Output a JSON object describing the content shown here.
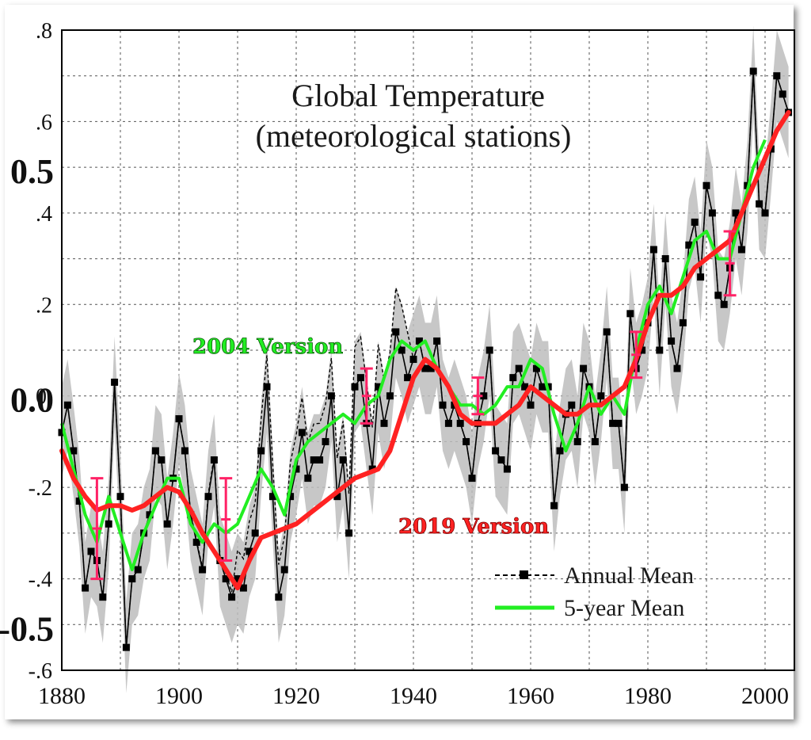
{
  "chart_data": {
    "type": "line",
    "title": "Global Temperature",
    "subtitle": "(meteorological stations)",
    "xlabel": "",
    "ylabel": "",
    "xlim": [
      1880,
      2005
    ],
    "ylim": [
      -0.6,
      0.8
    ],
    "grid": true,
    "legend_position": "bottom-right",
    "x_ticks": [
      {
        "value": 1880,
        "label": "1880"
      },
      {
        "value": 1900,
        "label": "1900"
      },
      {
        "value": 1920,
        "label": "1920"
      },
      {
        "value": 1940,
        "label": "1940"
      },
      {
        "value": 1960,
        "label": "1960"
      },
      {
        "value": 1980,
        "label": "1980"
      },
      {
        "value": 2000,
        "label": "2000"
      }
    ],
    "y_ticks_small": [
      {
        "value": 0.8,
        "label": ".8"
      },
      {
        "value": 0.6,
        "label": ".6"
      },
      {
        "value": 0.4,
        "label": ".4"
      },
      {
        "value": 0.2,
        "label": ".2"
      },
      {
        "value": 0.0,
        "label": "0."
      },
      {
        "value": -0.2,
        "label": "-.2"
      },
      {
        "value": -0.4,
        "label": "-.4"
      },
      {
        "value": -0.6,
        "label": "-.6"
      }
    ],
    "y_ticks_large": [
      {
        "value": 0.5,
        "label": "0.5"
      },
      {
        "value": 0.0,
        "label": "0.0"
      },
      {
        "value": -0.5,
        "label": "-0.5"
      }
    ],
    "annotations": [
      {
        "text": "2004 Version",
        "color": "#22ee22"
      },
      {
        "text": "2019 Version",
        "color": "#ff2222"
      }
    ],
    "legend": [
      {
        "label": "Annual Mean",
        "style": "dashed-square-marker",
        "color": "#000000"
      },
      {
        "label": "5-year Mean",
        "style": "solid",
        "color": "#22ee22"
      }
    ],
    "colors": {
      "uncertainty_band": "#bdbdbd",
      "annual_2019": "#000000",
      "annual_2004": "#000000",
      "mean_2004": "#22ee22",
      "smooth_2019": "#ff2222",
      "error_bars": "#ff2266"
    },
    "series": [
      {
        "name": "Annual Mean",
        "x": [
          1880,
          1881,
          1882,
          1883,
          1884,
          1885,
          1886,
          1887,
          1888,
          1889,
          1890,
          1891,
          1892,
          1893,
          1894,
          1895,
          1896,
          1897,
          1898,
          1899,
          1900,
          1901,
          1902,
          1903,
          1904,
          1905,
          1906,
          1907,
          1908,
          1909,
          1910,
          1911,
          1912,
          1913,
          1914,
          1915,
          1916,
          1917,
          1918,
          1919,
          1920,
          1921,
          1922,
          1923,
          1924,
          1925,
          1926,
          1927,
          1928,
          1929,
          1930,
          1931,
          1932,
          1933,
          1934,
          1935,
          1936,
          1937,
          1938,
          1939,
          1940,
          1941,
          1942,
          1943,
          1944,
          1945,
          1946,
          1947,
          1948,
          1949,
          1950,
          1951,
          1952,
          1953,
          1954,
          1955,
          1956,
          1957,
          1958,
          1959,
          1960,
          1961,
          1962,
          1963,
          1964,
          1965,
          1966,
          1967,
          1968,
          1969,
          1970,
          1971,
          1972,
          1973,
          1974,
          1975,
          1976,
          1977,
          1978,
          1979,
          1980,
          1981,
          1982,
          1983,
          1984,
          1985,
          1986,
          1987,
          1988,
          1989,
          1990,
          1991,
          1992,
          1993,
          1994,
          1995,
          1996,
          1997,
          1998,
          1999,
          2000,
          2001,
          2002,
          2003,
          2004
        ],
        "values": [
          -0.08,
          -0.02,
          -0.12,
          -0.23,
          -0.42,
          -0.34,
          -0.36,
          -0.44,
          -0.28,
          0.03,
          -0.22,
          -0.55,
          -0.4,
          -0.38,
          -0.3,
          -0.26,
          -0.12,
          -0.14,
          -0.28,
          -0.18,
          -0.05,
          -0.12,
          -0.26,
          -0.32,
          -0.38,
          -0.22,
          -0.14,
          -0.36,
          -0.4,
          -0.44,
          -0.4,
          -0.42,
          -0.34,
          -0.3,
          -0.12,
          0.02,
          -0.22,
          -0.44,
          -0.38,
          -0.22,
          -0.16,
          -0.08,
          -0.18,
          -0.14,
          -0.14,
          -0.1,
          0.0,
          -0.22,
          -0.14,
          -0.3,
          0.02,
          0.04,
          -0.06,
          -0.16,
          0.02,
          -0.06,
          0.0,
          0.14,
          0.1,
          0.04,
          0.08,
          0.12,
          0.06,
          0.06,
          0.12,
          -0.02,
          -0.06,
          -0.02,
          -0.06,
          -0.1,
          -0.18,
          -0.06,
          0.0,
          0.1,
          -0.12,
          -0.14,
          -0.16,
          0.04,
          0.06,
          0.02,
          -0.02,
          0.06,
          0.02,
          0.02,
          -0.24,
          -0.12,
          -0.04,
          -0.02,
          -0.1,
          0.06,
          0.02,
          -0.1,
          0.0,
          0.14,
          -0.06,
          -0.06,
          -0.2,
          0.18,
          0.06,
          0.1,
          0.16,
          0.32,
          0.1,
          0.3,
          0.12,
          0.06,
          0.16,
          0.33,
          0.38,
          0.26,
          0.46,
          0.4,
          0.22,
          0.2,
          0.28,
          0.4,
          0.32,
          0.46,
          0.71,
          0.42,
          0.4,
          0.54,
          0.7,
          0.66,
          0.62
        ]
      },
      {
        "name": "5-year Mean",
        "x": [
          1880,
          1882,
          1884,
          1886,
          1888,
          1890,
          1892,
          1894,
          1896,
          1898,
          1900,
          1902,
          1904,
          1906,
          1908,
          1910,
          1912,
          1914,
          1916,
          1918,
          1920,
          1922,
          1924,
          1926,
          1928,
          1930,
          1932,
          1934,
          1936,
          1938,
          1940,
          1942,
          1944,
          1946,
          1948,
          1950,
          1952,
          1954,
          1956,
          1958,
          1960,
          1962,
          1964,
          1966,
          1968,
          1970,
          1972,
          1974,
          1976,
          1978,
          1980,
          1982,
          1984,
          1986,
          1988,
          1990,
          1992,
          1994,
          1996,
          1998,
          2000
        ],
        "values": [
          -0.06,
          -0.16,
          -0.26,
          -0.32,
          -0.22,
          -0.3,
          -0.38,
          -0.3,
          -0.24,
          -0.18,
          -0.18,
          -0.28,
          -0.32,
          -0.28,
          -0.3,
          -0.28,
          -0.22,
          -0.16,
          -0.2,
          -0.26,
          -0.14,
          -0.1,
          -0.08,
          -0.06,
          -0.04,
          -0.06,
          -0.02,
          0.0,
          0.08,
          0.12,
          0.1,
          0.12,
          0.06,
          0.02,
          -0.02,
          -0.02,
          -0.04,
          -0.02,
          0.02,
          0.02,
          0.08,
          0.06,
          -0.04,
          -0.12,
          -0.06,
          0.02,
          -0.04,
          0.0,
          -0.04,
          0.1,
          0.2,
          0.24,
          0.18,
          0.26,
          0.34,
          0.36,
          0.3,
          0.3,
          0.4,
          0.5,
          0.56
        ]
      },
      {
        "name": "2019 smooth",
        "x": [
          1880,
          1882,
          1884,
          1886,
          1888,
          1890,
          1892,
          1894,
          1896,
          1898,
          1900,
          1902,
          1904,
          1906,
          1908,
          1910,
          1912,
          1914,
          1916,
          1918,
          1920,
          1922,
          1924,
          1926,
          1928,
          1930,
          1932,
          1934,
          1936,
          1938,
          1940,
          1942,
          1944,
          1946,
          1948,
          1950,
          1952,
          1954,
          1956,
          1958,
          1960,
          1962,
          1964,
          1966,
          1968,
          1970,
          1972,
          1974,
          1976,
          1978,
          1980,
          1982,
          1984,
          1986,
          1988,
          1990,
          1992,
          1994,
          1996,
          1998,
          2000,
          2002,
          2004
        ],
        "values": [
          -0.12,
          -0.18,
          -0.22,
          -0.25,
          -0.24,
          -0.24,
          -0.25,
          -0.24,
          -0.22,
          -0.2,
          -0.21,
          -0.25,
          -0.3,
          -0.34,
          -0.38,
          -0.42,
          -0.36,
          -0.31,
          -0.3,
          -0.29,
          -0.28,
          -0.26,
          -0.24,
          -0.22,
          -0.2,
          -0.18,
          -0.17,
          -0.16,
          -0.12,
          -0.04,
          0.04,
          0.08,
          0.06,
          0.02,
          -0.04,
          -0.06,
          -0.06,
          -0.06,
          -0.04,
          -0.02,
          0.02,
          0.0,
          -0.02,
          -0.04,
          -0.04,
          -0.02,
          -0.02,
          0.0,
          0.02,
          0.08,
          0.16,
          0.22,
          0.22,
          0.24,
          0.28,
          0.3,
          0.32,
          0.34,
          0.4,
          0.46,
          0.52,
          0.58,
          0.62
        ]
      }
    ],
    "error_bars": [
      {
        "x": 1886,
        "low": -0.4,
        "high": -0.18
      },
      {
        "x": 1908,
        "low": -0.36,
        "high": -0.18
      },
      {
        "x": 1932,
        "low": -0.06,
        "high": 0.06
      },
      {
        "x": 1951,
        "low": -0.04,
        "high": 0.04
      },
      {
        "x": 1978,
        "low": 0.04,
        "high": 0.14
      },
      {
        "x": 1994,
        "low": 0.22,
        "high": 0.36
      }
    ]
  }
}
